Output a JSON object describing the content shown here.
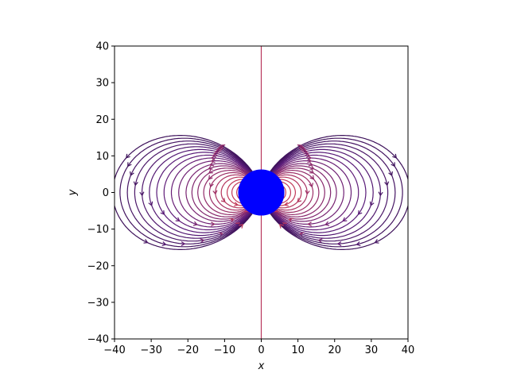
{
  "chart_data": {
    "type": "streamplot",
    "xlabel": "x",
    "ylabel": "y",
    "xlim": [
      -40,
      40
    ],
    "ylim": [
      -40,
      40
    ],
    "xticks": [
      -40,
      -30,
      -20,
      -10,
      0,
      10,
      20,
      30,
      40
    ],
    "yticks": [
      -40,
      -30,
      -20,
      -10,
      0,
      10,
      20,
      30,
      40
    ],
    "grid": false,
    "legend": "none",
    "field": {
      "kind": "magnetic dipole",
      "dipole_center": [
        0,
        0
      ],
      "moment_direction": [
        0,
        1
      ]
    },
    "body": {
      "shape": "circle",
      "center": [
        0,
        0
      ],
      "radius": 6.3,
      "color": "#0000ff"
    },
    "colormap": {
      "low_magnitude": "#0a0420",
      "mid_magnitude": "#5a1a7a",
      "high_magnitude": "#c23a5a"
    }
  }
}
